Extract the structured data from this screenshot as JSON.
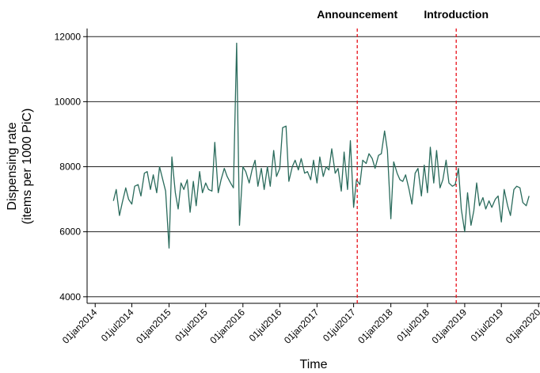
{
  "chart_data": {
    "type": "line",
    "xlabel": "Time",
    "ylabel": [
      "Dispensing rate",
      "(items per 1000 PiC)"
    ],
    "color": "#2a6b5c",
    "x": [
      "2014-04-01",
      "2014-04-15",
      "2014-05-01",
      "2014-05-15",
      "2014-06-01",
      "2014-06-15",
      "2014-07-01",
      "2014-07-15",
      "2014-08-01",
      "2014-08-15",
      "2014-09-01",
      "2014-09-15",
      "2014-10-01",
      "2014-10-15",
      "2014-11-01",
      "2014-11-15",
      "2014-12-01",
      "2014-12-15",
      "2015-01-01",
      "2015-01-15",
      "2015-02-01",
      "2015-02-15",
      "2015-03-01",
      "2015-03-15",
      "2015-04-01",
      "2015-04-15",
      "2015-05-01",
      "2015-05-15",
      "2015-06-01",
      "2015-06-15",
      "2015-07-01",
      "2015-07-15",
      "2015-08-01",
      "2015-08-15",
      "2015-09-01",
      "2015-09-15",
      "2015-10-01",
      "2015-10-15",
      "2015-11-01",
      "2015-11-15",
      "2015-12-01",
      "2015-12-15",
      "2016-01-01",
      "2016-01-15",
      "2016-02-01",
      "2016-02-15",
      "2016-03-01",
      "2016-03-15",
      "2016-04-01",
      "2016-04-15",
      "2016-05-01",
      "2016-05-15",
      "2016-06-01",
      "2016-06-15",
      "2016-07-01",
      "2016-07-15",
      "2016-08-01",
      "2016-08-15",
      "2016-09-01",
      "2016-09-15",
      "2016-10-01",
      "2016-10-15",
      "2016-11-01",
      "2016-11-15",
      "2016-12-01",
      "2016-12-15",
      "2017-01-01",
      "2017-01-15",
      "2017-02-01",
      "2017-02-15",
      "2017-03-01",
      "2017-03-15",
      "2017-04-01",
      "2017-04-15",
      "2017-05-01",
      "2017-05-15",
      "2017-06-01",
      "2017-06-15",
      "2017-07-01",
      "2017-07-15",
      "2017-08-01",
      "2017-08-15",
      "2017-09-01",
      "2017-09-15",
      "2017-10-01",
      "2017-10-15",
      "2017-11-01",
      "2017-11-15",
      "2017-12-01",
      "2017-12-15",
      "2018-01-01",
      "2018-01-15",
      "2018-02-01",
      "2018-02-15",
      "2018-03-01",
      "2018-03-15",
      "2018-04-01",
      "2018-04-15",
      "2018-05-01",
      "2018-05-15",
      "2018-06-01",
      "2018-06-15",
      "2018-07-01",
      "2018-07-15",
      "2018-08-01",
      "2018-08-15",
      "2018-09-01",
      "2018-09-15",
      "2018-10-01",
      "2018-10-15",
      "2018-11-01",
      "2018-11-15",
      "2018-12-01",
      "2018-12-15",
      "2019-01-01",
      "2019-01-15",
      "2019-02-01",
      "2019-02-15",
      "2019-03-01",
      "2019-03-15",
      "2019-04-01",
      "2019-04-15",
      "2019-05-01",
      "2019-05-15",
      "2019-06-01",
      "2019-06-15",
      "2019-07-01",
      "2019-07-15",
      "2019-08-01",
      "2019-08-15",
      "2019-09-01",
      "2019-09-15",
      "2019-10-01",
      "2019-10-15",
      "2019-11-01",
      "2019-11-15"
    ],
    "values": [
      6950,
      7300,
      6500,
      6900,
      7350,
      7000,
      6850,
      7400,
      7450,
      7100,
      7800,
      7850,
      7300,
      7750,
      7200,
      8000,
      7600,
      7250,
      5500,
      8300,
      7200,
      6700,
      7500,
      7300,
      7600,
      6600,
      7550,
      6800,
      7850,
      7200,
      7500,
      7300,
      7250,
      8750,
      7200,
      7600,
      7950,
      7700,
      7500,
      7350,
      11800,
      6200,
      8000,
      7850,
      7500,
      7900,
      8200,
      7400,
      7950,
      7300,
      8000,
      7400,
      8500,
      7700,
      7950,
      9200,
      9250,
      7550,
      8000,
      8200,
      7900,
      8250,
      7800,
      7850,
      7600,
      8200,
      7500,
      8300,
      7700,
      8000,
      7900,
      8550,
      7800,
      7950,
      7250,
      8450,
      7300,
      8800,
      6750,
      7600,
      7450,
      8200,
      8100,
      8400,
      8250,
      7950,
      8350,
      8400,
      9100,
      8500,
      6400,
      8150,
      7800,
      7600,
      7550,
      7750,
      7300,
      6850,
      7800,
      7950,
      7100,
      8050,
      7200,
      8600,
      7500,
      8500,
      7350,
      7600,
      8200,
      7500,
      7400,
      7450,
      7950,
      6700,
      6000,
      7200,
      6200,
      6650,
      7500,
      6800,
      7050,
      6700,
      6950,
      6750,
      7000,
      7100,
      6300,
      7300,
      6800,
      6500,
      7300,
      7400,
      7350,
      6900,
      6800,
      7100
    ],
    "xlim": [
      "2013-11-22",
      "2020-01-08"
    ],
    "xticks": [
      {
        "value": "2014-01-01",
        "label": "01jan2014"
      },
      {
        "value": "2014-07-01",
        "label": "01jul2014"
      },
      {
        "value": "2015-01-01",
        "label": "01jan2015"
      },
      {
        "value": "2015-07-01",
        "label": "01jul2015"
      },
      {
        "value": "2016-01-01",
        "label": "01jan2016"
      },
      {
        "value": "2016-07-01",
        "label": "01jul2016"
      },
      {
        "value": "2017-01-01",
        "label": "01jan2017"
      },
      {
        "value": "2017-07-01",
        "label": "01jul2017"
      },
      {
        "value": "2018-01-01",
        "label": "01jan2018"
      },
      {
        "value": "2018-07-01",
        "label": "01jul2018"
      },
      {
        "value": "2019-01-01",
        "label": "01jan2019"
      },
      {
        "value": "2019-07-01",
        "label": "01jul2019"
      },
      {
        "value": "2020-01-01",
        "label": "01jan2020"
      }
    ],
    "ylim": [
      3800,
      12250
    ],
    "yticks": [
      4000,
      6000,
      8000,
      10000,
      12000
    ],
    "grid": true,
    "annotations": [
      {
        "x": "2017-07-19",
        "label": "Announcement",
        "color": "#e8101a"
      },
      {
        "x": "2018-11-20",
        "label": "Introduction",
        "color": "#e8101a"
      }
    ]
  }
}
